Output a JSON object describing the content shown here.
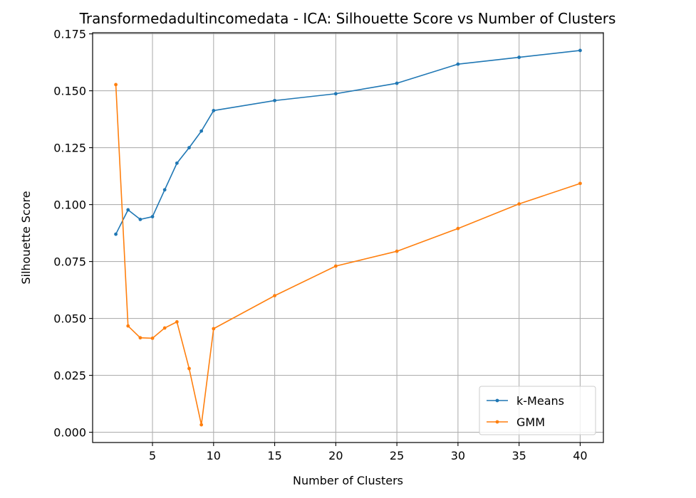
{
  "chart_data": {
    "type": "line",
    "title": "Transformedadultincomedata - ICA: Silhouette Score vs Number of Clusters",
    "xlabel": "Number of Clusters",
    "ylabel": "Silhouette Score",
    "xlim": [
      0.1,
      41.9
    ],
    "ylim": [
      -0.0045,
      0.1755
    ],
    "x_ticks": [
      5,
      10,
      15,
      20,
      25,
      30,
      35,
      40
    ],
    "x_tick_labels": [
      "5",
      "10",
      "15",
      "20",
      "25",
      "30",
      "35",
      "40"
    ],
    "y_ticks": [
      0.0,
      0.025,
      0.05,
      0.075,
      0.1,
      0.125,
      0.15,
      0.175
    ],
    "y_tick_labels": [
      "0.000",
      "0.025",
      "0.050",
      "0.075",
      "0.100",
      "0.125",
      "0.150",
      "0.175"
    ],
    "grid": true,
    "legend_position": "lower-right",
    "x": [
      2,
      3,
      4,
      5,
      6,
      7,
      8,
      9,
      10,
      15,
      20,
      25,
      30,
      35,
      40
    ],
    "series": [
      {
        "name": "k-Means",
        "color": "#1f77b4",
        "values": [
          0.087,
          0.0977,
          0.0935,
          0.0947,
          0.1065,
          0.1182,
          0.125,
          0.1323,
          0.1413,
          0.1457,
          0.1487,
          0.1533,
          0.1617,
          0.1647,
          0.1677
        ]
      },
      {
        "name": "GMM",
        "color": "#ff7f0e",
        "values": [
          0.1527,
          0.0467,
          0.0415,
          0.0413,
          0.0458,
          0.0485,
          0.028,
          0.0033,
          0.0455,
          0.06,
          0.073,
          0.0795,
          0.0895,
          0.1003,
          0.1093
        ]
      }
    ]
  }
}
